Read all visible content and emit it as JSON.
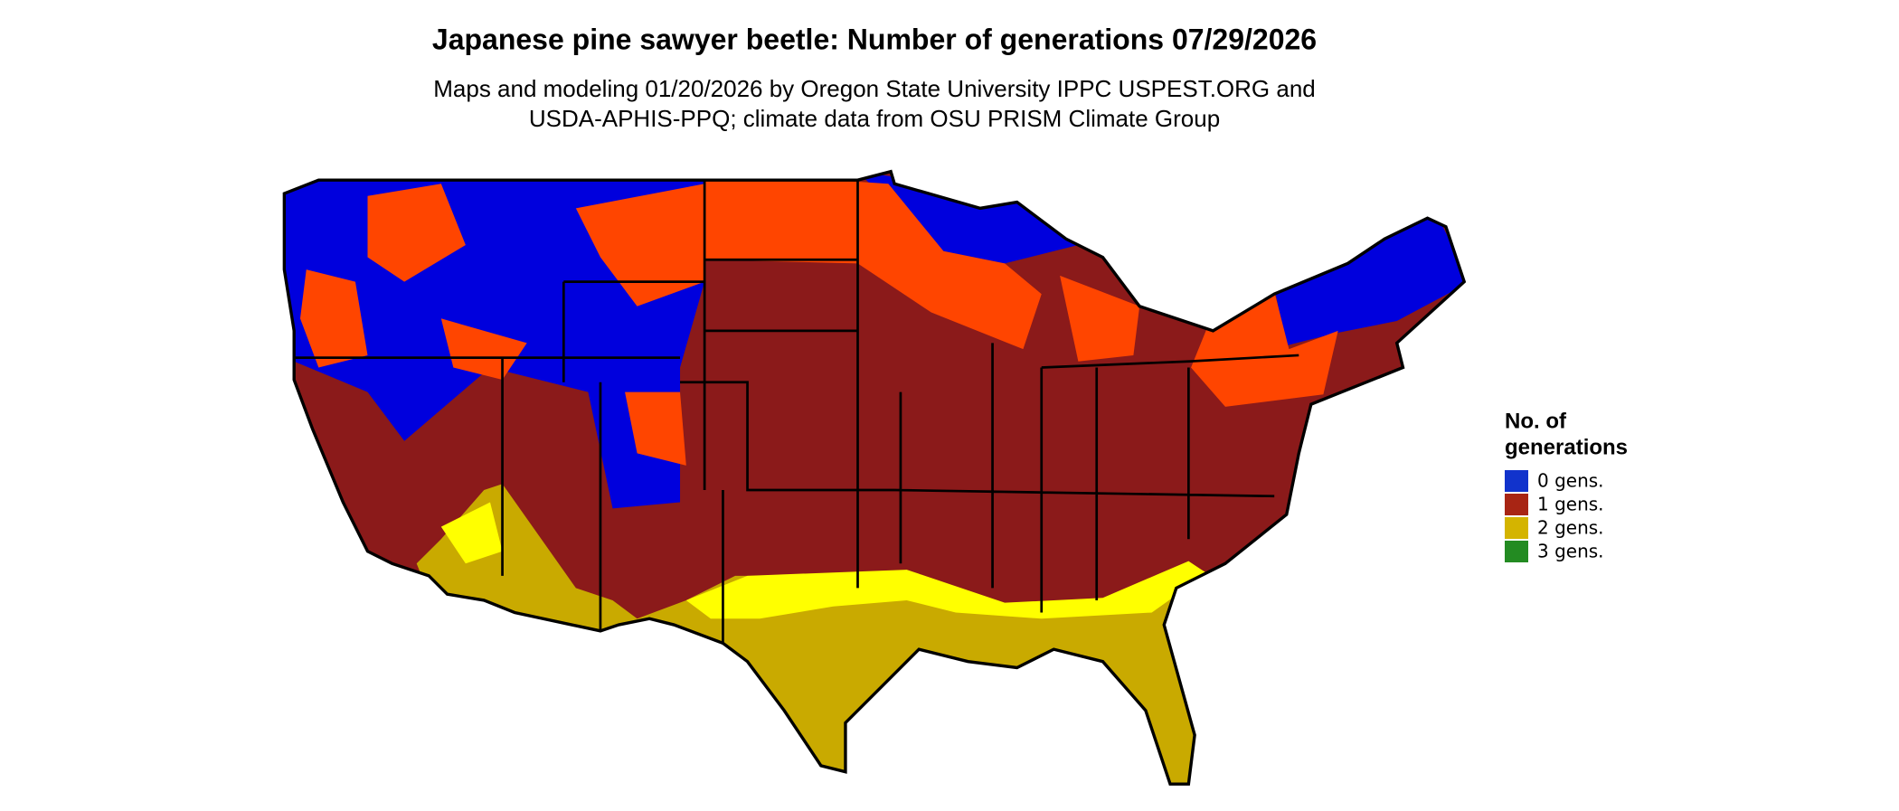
{
  "title": "Japanese pine sawyer beetle: Number of generations 07/29/2026",
  "subtitle": [
    "Maps and modeling 01/20/2026 by Oregon State University IPPC USPEST.ORG and",
    "USDA-APHIS-PPQ; climate data from OSU PRISM Climate Group"
  ],
  "legend": {
    "title": [
      "No. of",
      "generations"
    ],
    "items": [
      {
        "label": "0 gens.",
        "color": "#1133cc"
      },
      {
        "label": "1 gens.",
        "color": "#a82514"
      },
      {
        "label": "2 gens.",
        "color": "#d4b400"
      },
      {
        "label": "3 gens.",
        "color": "#238b22"
      }
    ]
  }
}
